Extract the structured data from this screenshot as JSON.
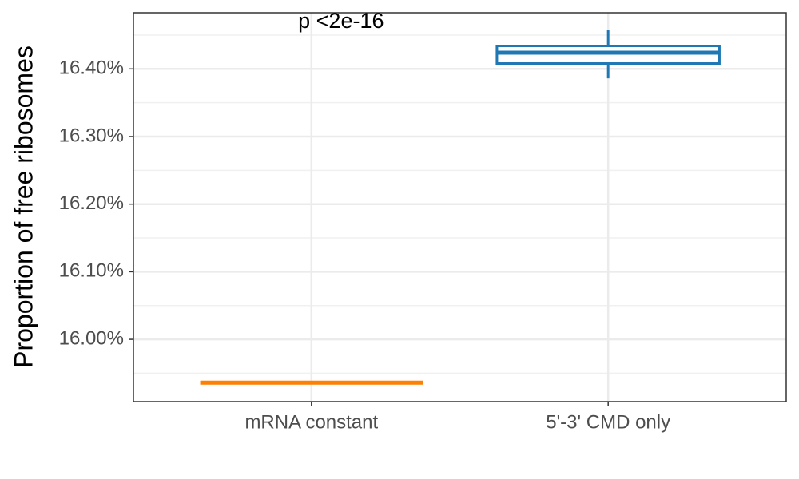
{
  "chart_data": {
    "type": "box",
    "y_label": "Proportion of free ribosomes",
    "annotation": "p <2e-16",
    "categories": [
      "mRNA constant",
      "5'-3' CMD only"
    ],
    "boxes": [
      {
        "min": 15.936,
        "q1": 15.936,
        "median": 15.936,
        "q3": 15.936,
        "max": 15.936,
        "color": "#ff7f00"
      },
      {
        "min": 16.386,
        "q1": 16.408,
        "median": 16.424,
        "q3": 16.434,
        "max": 16.457,
        "color": "#1f78b4"
      }
    ],
    "ylim": [
      15.908,
      16.483
    ],
    "yticks": [
      {
        "value": 16.0,
        "label": "16.00%"
      },
      {
        "value": 16.1,
        "label": "16.10%"
      },
      {
        "value": 16.2,
        "label": "16.20%"
      },
      {
        "value": 16.3,
        "label": "16.30%"
      },
      {
        "value": 16.4,
        "label": "16.40%"
      }
    ],
    "grid": true
  }
}
